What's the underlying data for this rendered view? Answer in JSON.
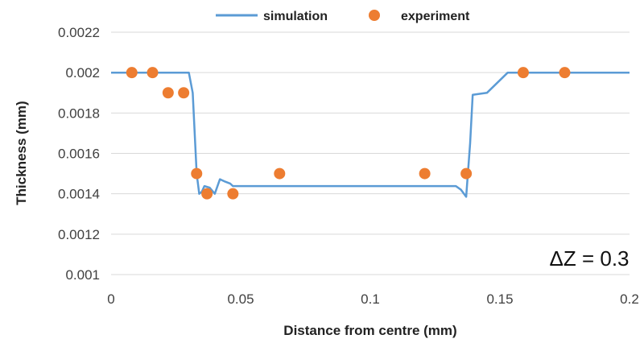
{
  "chart_data": {
    "type": "line",
    "xlabel": "Distance from centre (mm)",
    "ylabel": "Thickness (mm)",
    "xlim": [
      0,
      0.2
    ],
    "ylim": [
      0.001,
      0.0022
    ],
    "x_ticks": [
      "0",
      "0.05",
      "0.1",
      "0.15",
      "0.2"
    ],
    "y_ticks": [
      "0.001",
      "0.0012",
      "0.0014",
      "0.0016",
      "0.0018",
      "0.002",
      "0.0022"
    ],
    "grid": "horizontal",
    "legend_position": "top",
    "annotation": "ΔZ = 0.3",
    "colors": {
      "simulation": "#5b9bd5",
      "experiment": "#ed7d31"
    },
    "series": [
      {
        "name": "simulation",
        "style": "line",
        "x": [
          0,
          0.03,
          0.0315,
          0.033,
          0.034,
          0.035,
          0.036,
          0.038,
          0.04,
          0.042,
          0.044,
          0.046,
          0.047,
          0.1,
          0.133,
          0.135,
          0.137,
          0.1385,
          0.1395,
          0.145,
          0.153,
          0.2
        ],
        "y": [
          0.002,
          0.002,
          0.0019,
          0.0015,
          0.0014,
          0.00141,
          0.001438,
          0.00143,
          0.0014,
          0.001472,
          0.00146,
          0.00145,
          0.001438,
          0.001438,
          0.001438,
          0.00142,
          0.001385,
          0.00165,
          0.00189,
          0.0019,
          0.002,
          0.002
        ]
      },
      {
        "name": "experiment",
        "style": "markers",
        "x": [
          0.008,
          0.016,
          0.022,
          0.028,
          0.033,
          0.037,
          0.047,
          0.065,
          0.121,
          0.137,
          0.159,
          0.175
        ],
        "y": [
          0.002,
          0.002,
          0.0019,
          0.0019,
          0.0015,
          0.0014,
          0.0014,
          0.0015,
          0.0015,
          0.0015,
          0.002,
          0.002
        ]
      }
    ]
  }
}
